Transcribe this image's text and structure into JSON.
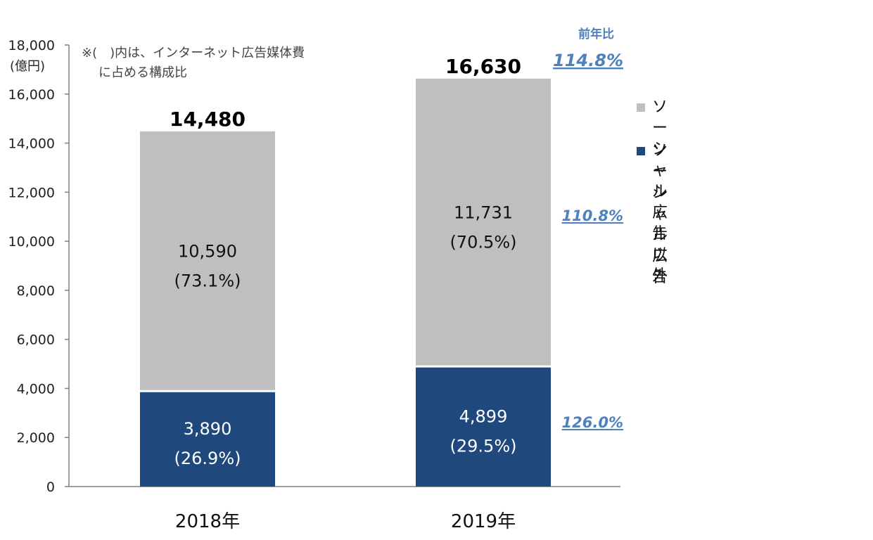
{
  "note_lines": [
    "※(　)内は、インターネット広告媒体費",
    "に占める構成比"
  ],
  "y_unit": "(億円)",
  "yoy_header": "前年比",
  "legend": [
    {
      "label": "ソーシャル広告以外",
      "color": "#bfbfbf"
    },
    {
      "label": "ソーシャル広告",
      "color": "#1f497d"
    }
  ],
  "colors": {
    "social": "#1f497d",
    "non_social": "#bfbfbf",
    "yoy": "#4f81bd",
    "axis": "#808080"
  },
  "chart_data": {
    "type": "bar",
    "stacked": true,
    "categories": [
      "2018年",
      "2019年"
    ],
    "series": [
      {
        "name": "ソーシャル広告",
        "values": [
          3890,
          4899
        ],
        "share_labels": [
          "(26.9%)",
          "(29.5%)"
        ],
        "value_labels": [
          "3,890",
          "4,899"
        ]
      },
      {
        "name": "ソーシャル広告以外",
        "values": [
          10590,
          11731
        ],
        "share_labels": [
          "(73.1%)",
          "(70.5%)"
        ],
        "value_labels": [
          "10,590",
          "11,731"
        ]
      }
    ],
    "totals": [
      14480,
      16630
    ],
    "total_labels": [
      "14,480",
      "16,630"
    ],
    "yoy": {
      "total": "114.8%",
      "non_social": "110.8%",
      "social": "126.0%"
    },
    "ylim": [
      0,
      18000
    ],
    "y_ticks": [
      0,
      2000,
      4000,
      6000,
      8000,
      10000,
      12000,
      14000,
      16000,
      18000
    ],
    "y_tick_labels": [
      "0",
      "2,000",
      "4,000",
      "6,000",
      "8,000",
      "10,000",
      "12,000",
      "14,000",
      "16,000",
      "18,000"
    ],
    "grid": false,
    "legend_position": "right"
  }
}
